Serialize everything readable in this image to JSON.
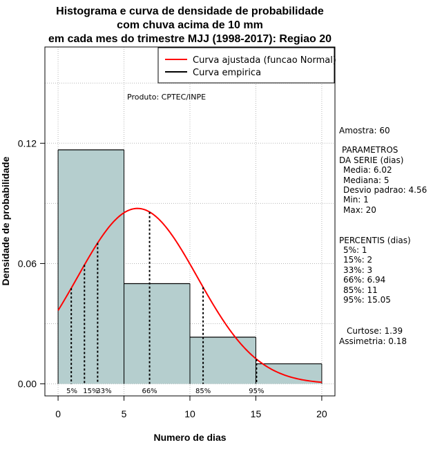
{
  "chart_data": {
    "type": "bar",
    "title": [
      "Histograma e curva de densidade de probabilidade",
      "com chuva acima de 10 mm",
      "em cada mes do trimestre MJJ (1998-2017): Regiao 20"
    ],
    "xlabel": "Numero de dias",
    "ylabel": "Densidade de probabilidade",
    "xlim": [
      -1,
      21
    ],
    "ylim": [
      -0.006,
      0.168
    ],
    "x_ticks": [
      0,
      5,
      10,
      15,
      20
    ],
    "y_ticks": [
      0.0,
      0.06,
      0.12
    ],
    "y_tick_labels": [
      "0.00",
      "0.06",
      "0.12"
    ],
    "grid": true,
    "bins": [
      {
        "from": 0,
        "to": 5,
        "density": 0.1167
      },
      {
        "from": 5,
        "to": 10,
        "density": 0.05
      },
      {
        "from": 10,
        "to": 15,
        "density": 0.0233
      },
      {
        "from": 15,
        "to": 20,
        "density": 0.01
      }
    ],
    "fitted_curve": {
      "name": "Curva ajustada (funcao Normal)",
      "distribution": "normal",
      "mean": 6.02,
      "sd": 4.56,
      "color": "#ff0000"
    },
    "empirical_curve": {
      "name": "Curva empirica",
      "color": "#000000"
    },
    "percentile_lines": [
      {
        "label": "5%",
        "x": 1
      },
      {
        "label": "15%",
        "x": 2
      },
      {
        "label": "33%",
        "x": 3
      },
      {
        "label": "66%",
        "x": 6.94
      },
      {
        "label": "85%",
        "x": 11
      },
      {
        "label": "95%",
        "x": 15.05
      }
    ],
    "bar_color": "#b5cece",
    "legend_position": "top-right"
  },
  "annotation": "Produto: CPTEC/INPE",
  "side_panel": {
    "sample": "Amostra: 60",
    "params_title_1": "PARAMETROS",
    "params_title_2": "DA SERIE (dias)",
    "media": "Media: 6.02",
    "mediana": "Mediana: 5",
    "desvio": "Desvio padrao: 4.56",
    "min": "Min: 1",
    "max": "Max: 20",
    "pct_title": "PERCENTIS (dias)",
    "p5": "5%: 1",
    "p15": "15%: 2",
    "p33": "33%: 3",
    "p66": "66%: 6.94",
    "p85": "85%: 11",
    "p95": "95%: 15.05",
    "curtose": "Curtose: 1.39",
    "assimetria": "Assimetria: 0.18"
  }
}
